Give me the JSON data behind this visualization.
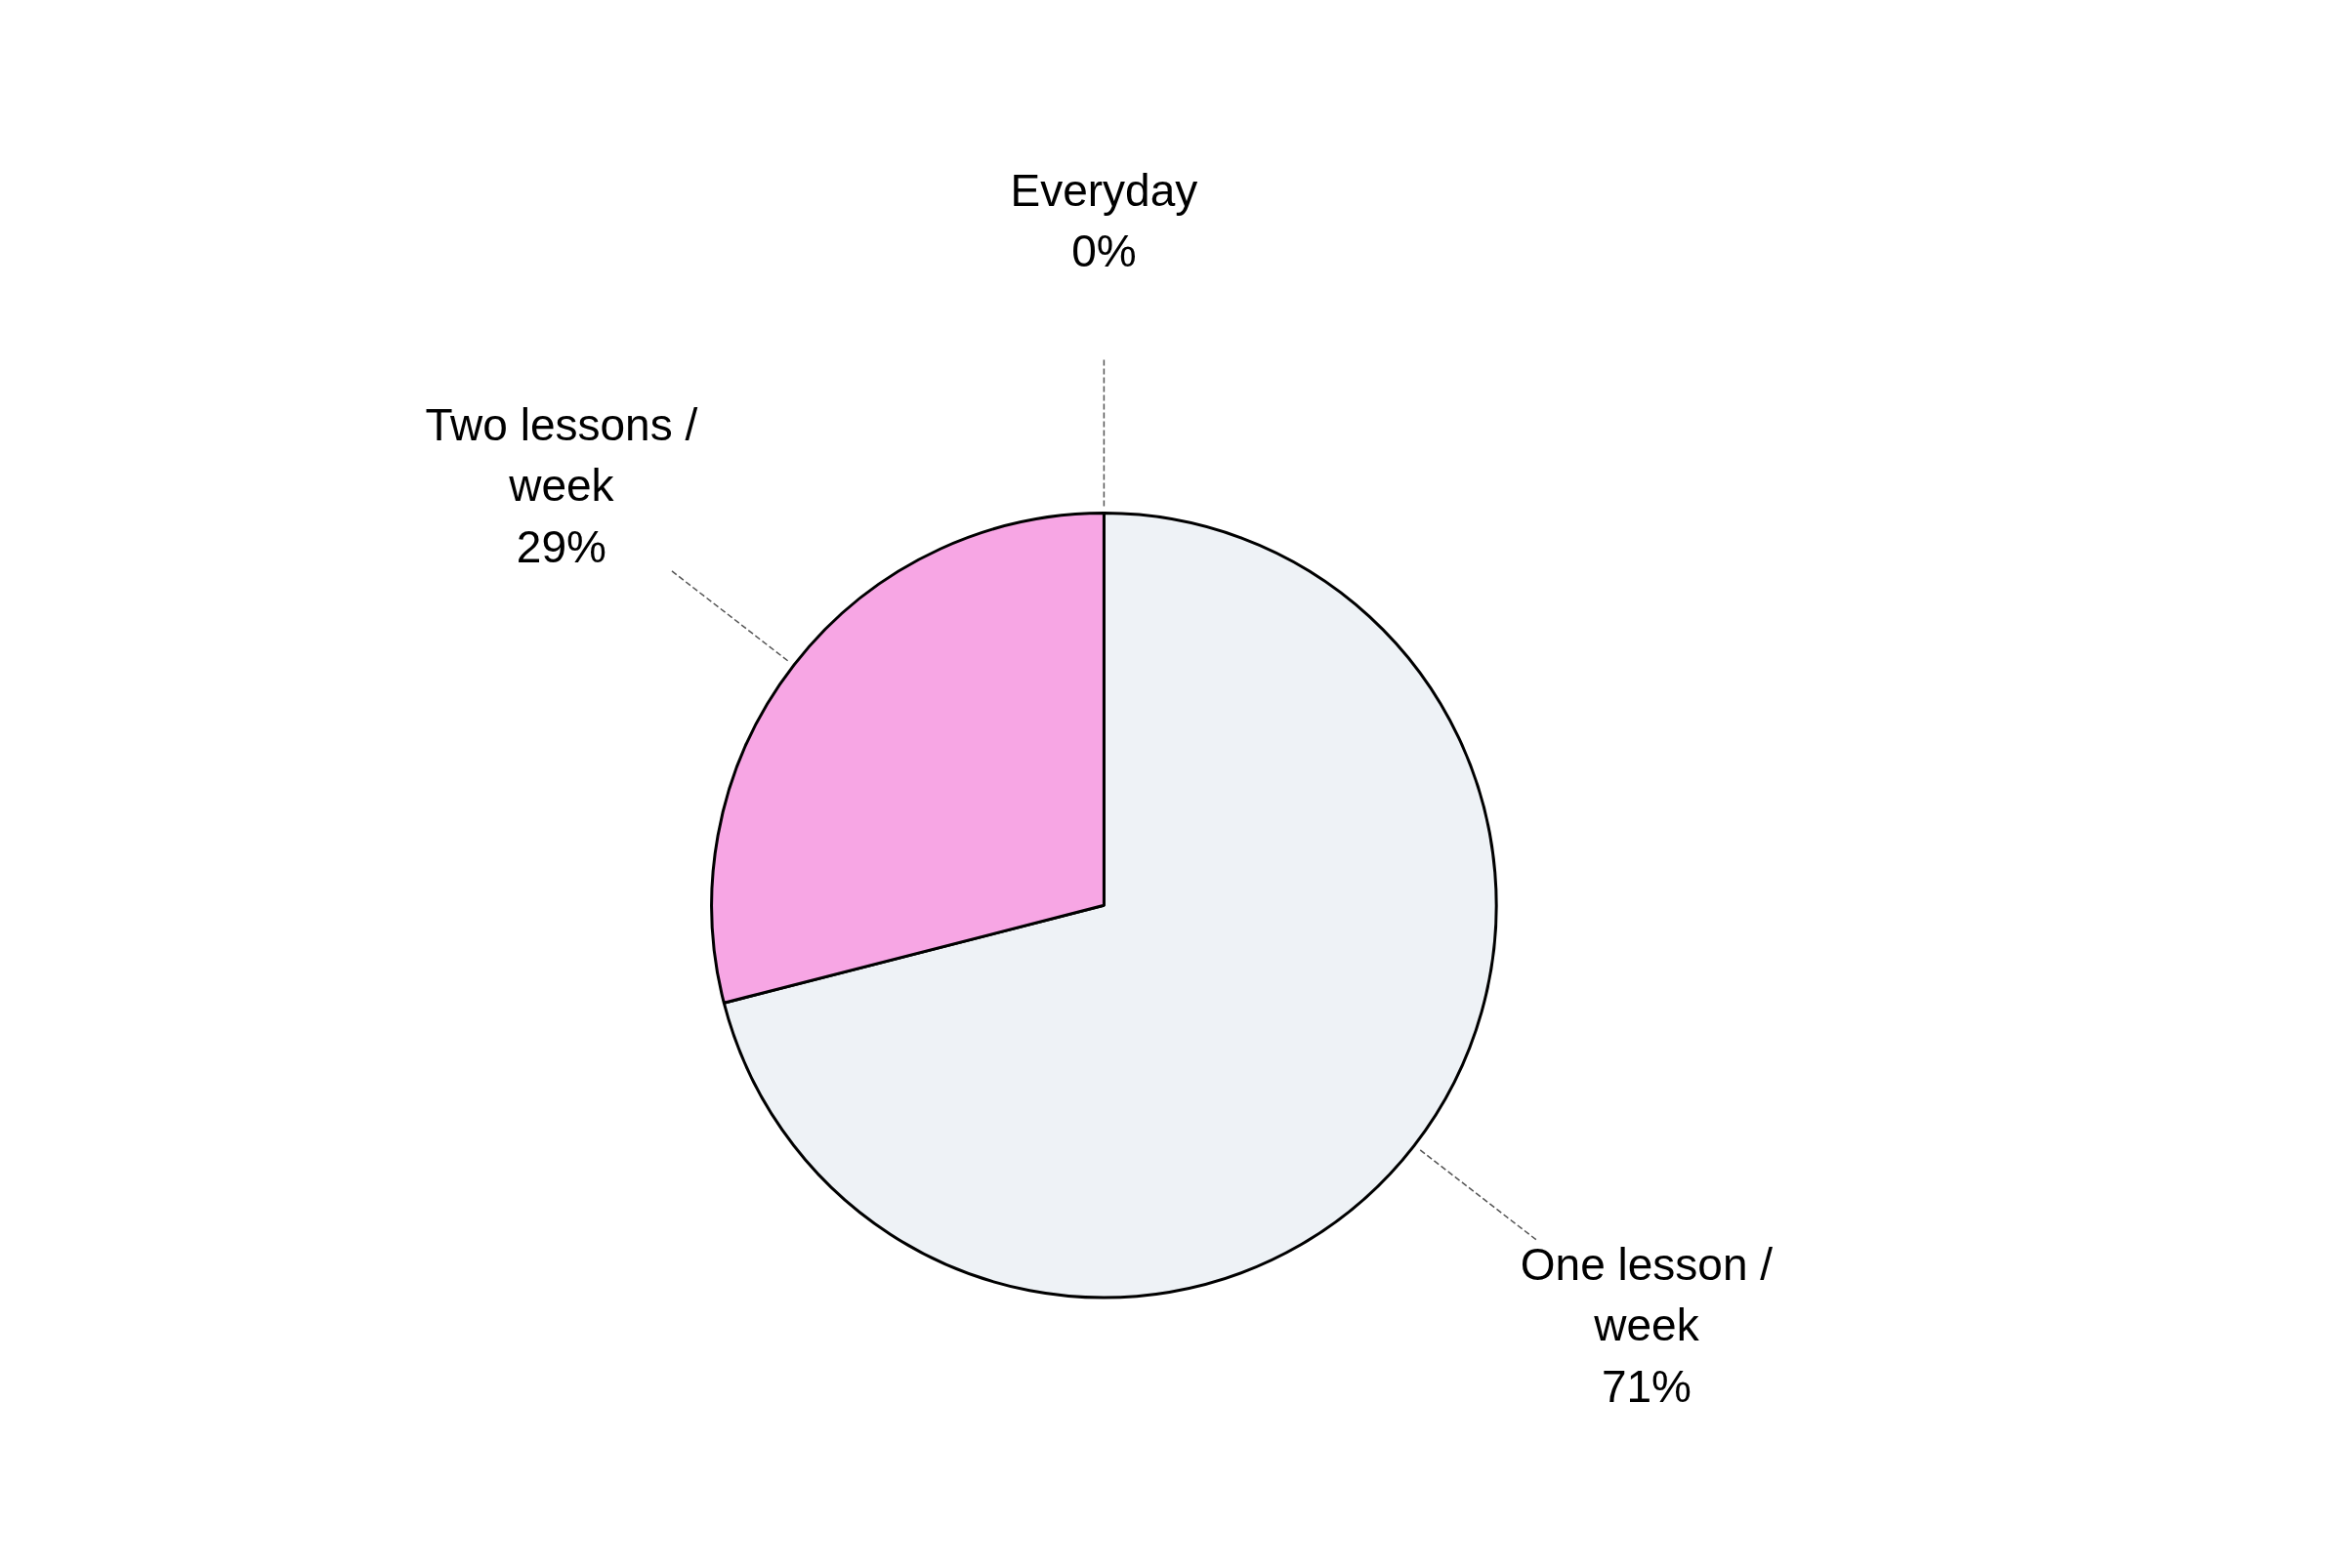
{
  "chart_data": {
    "type": "pie",
    "categories": [
      "Everyday",
      "One lesson / week",
      "Two lessons / week"
    ],
    "values": [
      0,
      71,
      29
    ],
    "colors": [
      "#9999ff",
      "#eef2f6",
      "#f7a6e4"
    ],
    "value_labels": [
      "0%",
      "71%",
      "29%"
    ]
  }
}
